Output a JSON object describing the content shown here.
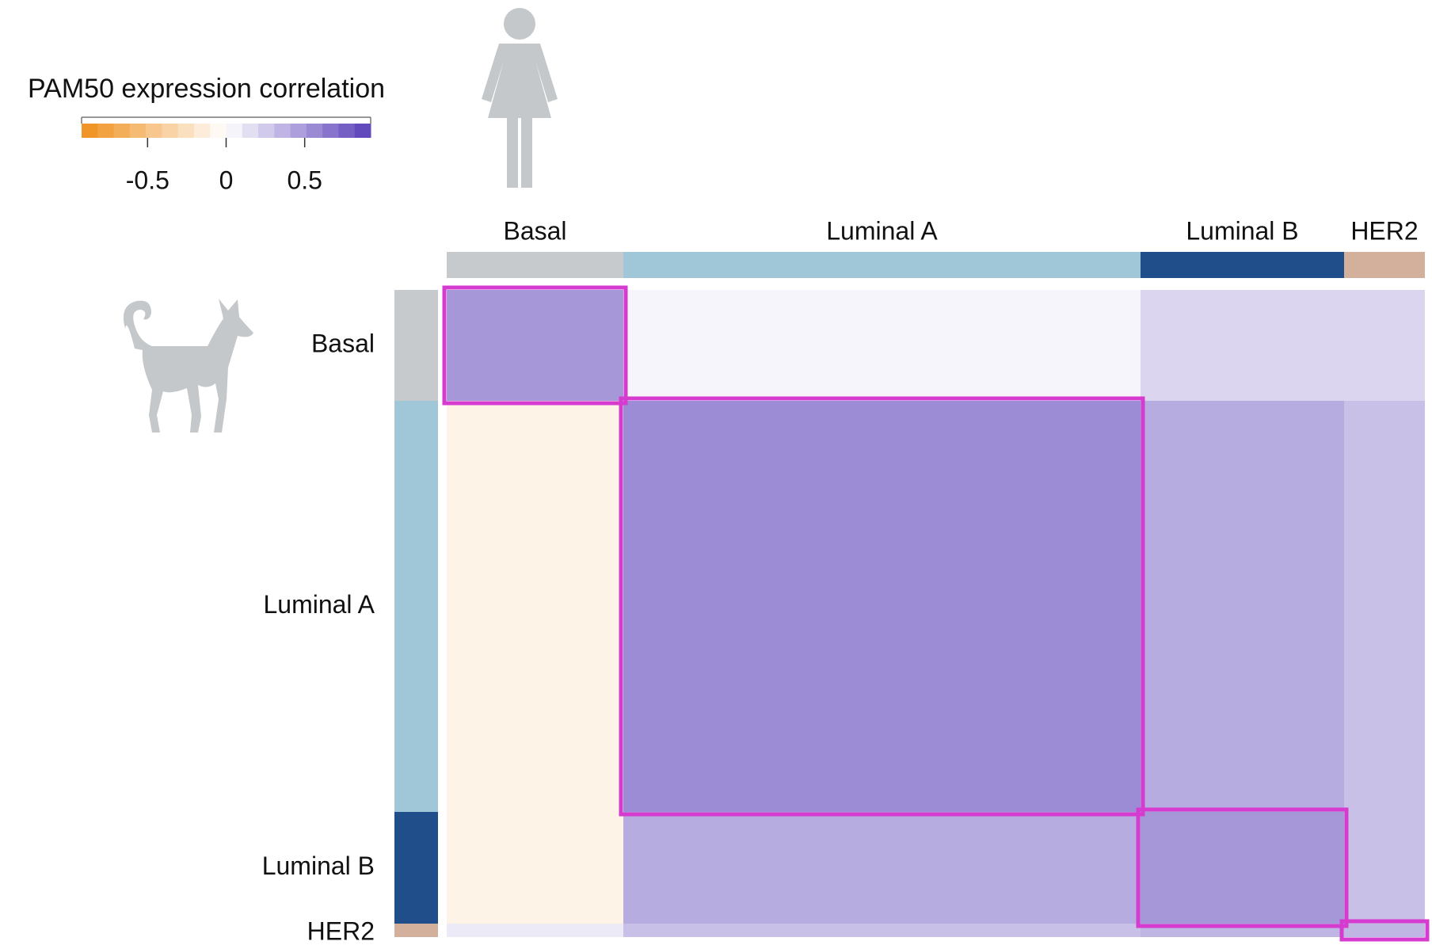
{
  "chart_data": {
    "type": "heatmap",
    "title": "PAM50 expression correlation",
    "x_categories": [
      "Basal",
      "Luminal A",
      "Luminal B",
      "HER2"
    ],
    "y_categories": [
      "Basal",
      "Luminal A",
      "Luminal B",
      "HER2"
    ],
    "group_colors": [
      "#c6cacc",
      "#9fc7d8",
      "#1f4e8a",
      "#d2b09c"
    ],
    "values": [
      [
        0.5,
        0.05,
        0.2,
        0.2
      ],
      [
        -0.1,
        0.55,
        0.4,
        0.3
      ],
      [
        -0.1,
        0.4,
        0.5,
        0.3
      ],
      [
        0.1,
        0.3,
        0.35,
        0.35
      ]
    ],
    "colorbar": {
      "lim": [
        -0.92,
        0.92
      ],
      "ticks": [
        -0.5,
        0,
        0.5
      ],
      "low_color": "#ef8f1a",
      "high_color": "#5a3fb8"
    },
    "highlight_color": "#d63bd0"
  }
}
